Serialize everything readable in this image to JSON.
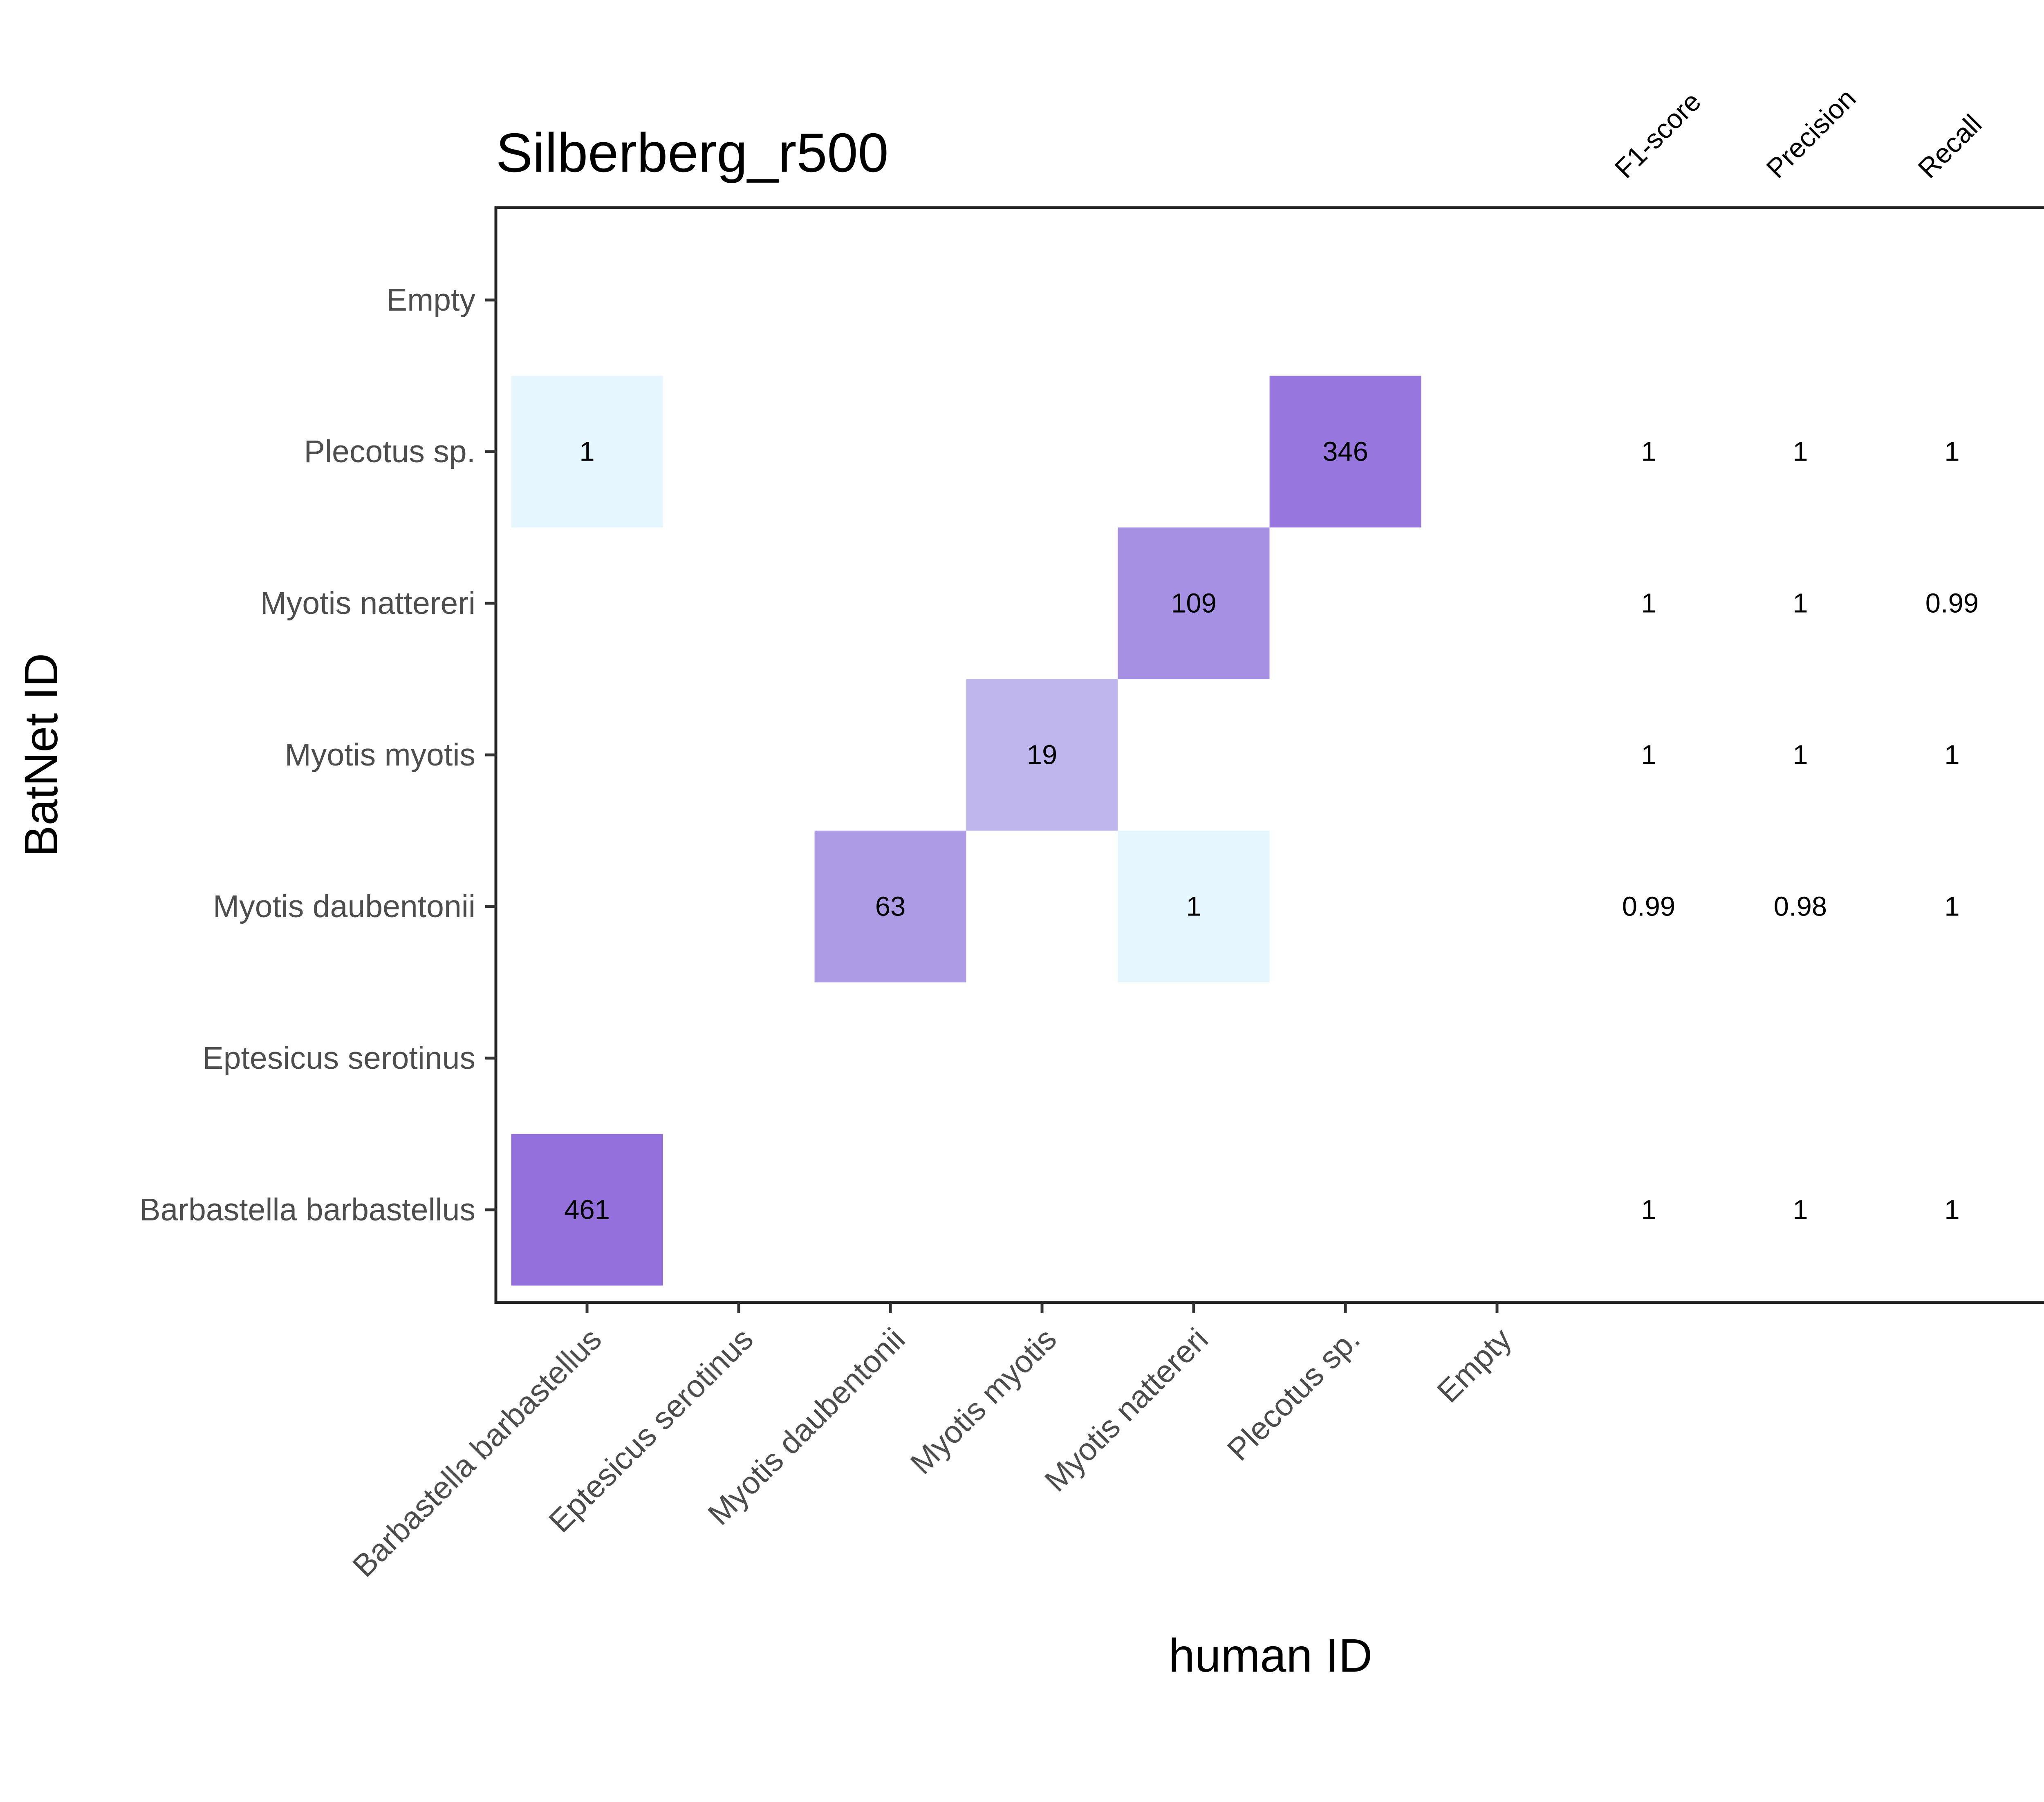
{
  "chart_data": {
    "type": "heatmap",
    "title": "Silberberg_r500",
    "xlabel": "human ID",
    "ylabel": "BatNet ID",
    "x_categories": [
      "Barbastella barbastellus",
      "Eptesicus serotinus",
      "Myotis daubentonii",
      "Myotis myotis",
      "Myotis nattereri",
      "Plecotus sp.",
      "Empty"
    ],
    "y_categories": [
      "Barbastella barbastellus",
      "Eptesicus serotinus",
      "Myotis daubentonii",
      "Myotis myotis",
      "Myotis nattereri",
      "Plecotus sp.",
      "Empty"
    ],
    "cells": [
      {
        "x": "Barbastella barbastellus",
        "y": "Barbastella barbastellus",
        "value": 461,
        "label": "461"
      },
      {
        "x": "Myotis daubentonii",
        "y": "Myotis daubentonii",
        "value": 63,
        "label": "63"
      },
      {
        "x": "Myotis nattereri",
        "y": "Myotis daubentonii",
        "value": 1,
        "label": "1"
      },
      {
        "x": "Myotis myotis",
        "y": "Myotis myotis",
        "value": 19,
        "label": "19"
      },
      {
        "x": "Myotis nattereri",
        "y": "Myotis nattereri",
        "value": 109,
        "label": "109"
      },
      {
        "x": "Barbastella barbastellus",
        "y": "Plecotus sp.",
        "value": 1,
        "label": "1"
      },
      {
        "x": "Plecotus sp.",
        "y": "Plecotus sp.",
        "value": 346,
        "label": "346"
      }
    ],
    "metric_columns": [
      "F1-score",
      "Precision",
      "Recall"
    ],
    "metrics": [
      {
        "class": "Plecotus sp.",
        "values": [
          "1",
          "1",
          "1"
        ]
      },
      {
        "class": "Myotis nattereri",
        "values": [
          "1",
          "1",
          "0.99"
        ]
      },
      {
        "class": "Myotis myotis",
        "values": [
          "1",
          "1",
          "1"
        ]
      },
      {
        "class": "Myotis daubentonii",
        "values": [
          "0.99",
          "0.98",
          "1"
        ]
      },
      {
        "class": "Barbastella barbastellus",
        "values": [
          "1",
          "1",
          "1"
        ]
      }
    ],
    "color_scale": {
      "low": "#e5f6fe",
      "high": "#9370db"
    },
    "grid": false,
    "legend": "none"
  }
}
